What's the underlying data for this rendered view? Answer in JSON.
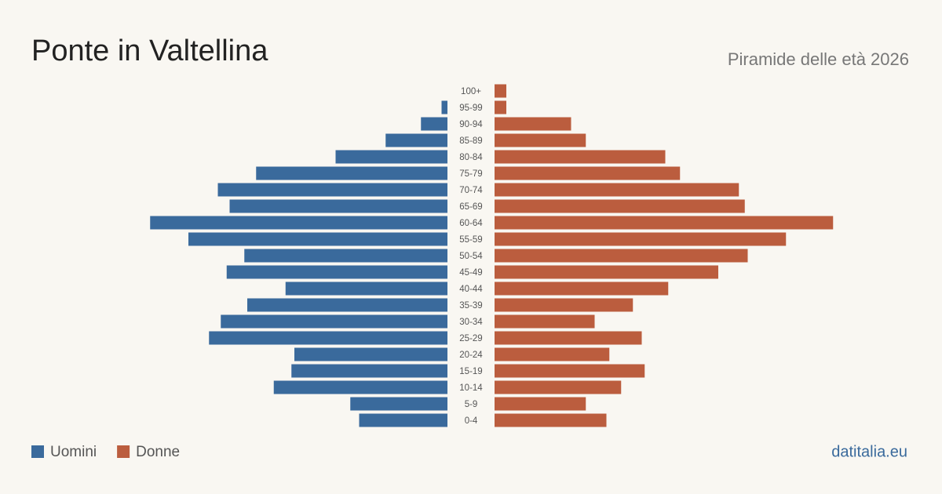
{
  "chart_data": {
    "type": "pyramid",
    "title": "Ponte in Valtellina",
    "subtitle": "Piramide delle età 2026",
    "source": "datitalia.eu",
    "categories": [
      "100+",
      "95-99",
      "90-94",
      "85-89",
      "80-84",
      "75-79",
      "70-74",
      "65-69",
      "60-64",
      "55-59",
      "50-54",
      "45-49",
      "40-44",
      "35-39",
      "30-34",
      "25-29",
      "20-24",
      "15-19",
      "10-14",
      "5-9",
      "0-4"
    ],
    "series": [
      {
        "name": "Uomini",
        "color": "#3a6a9c",
        "values": [
          0,
          2,
          9,
          21,
          38,
          65,
          78,
          74,
          101,
          88,
          69,
          75,
          55,
          68,
          77,
          81,
          52,
          53,
          59,
          33,
          30
        ]
      },
      {
        "name": "Donne",
        "color": "#bb5d3e",
        "values": [
          4,
          4,
          26,
          31,
          58,
          63,
          83,
          85,
          115,
          99,
          86,
          76,
          59,
          47,
          34,
          50,
          39,
          51,
          43,
          31,
          38
        ]
      }
    ],
    "xlim": [
      0,
      120
    ]
  }
}
